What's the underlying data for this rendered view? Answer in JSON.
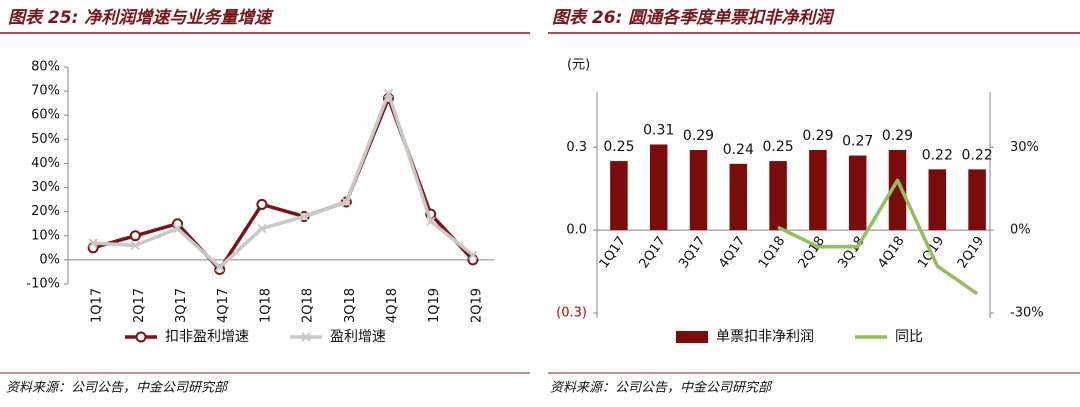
{
  "chart_data": [
    {
      "type": "line",
      "title": "图表 25: 净利润增速与业务量增速",
      "source": "资料来源：公司公告，中金公司研究部",
      "categories": [
        "1Q17",
        "2Q17",
        "3Q17",
        "4Q17",
        "1Q18",
        "2Q18",
        "3Q18",
        "4Q18",
        "1Q19",
        "2Q19"
      ],
      "series": [
        {
          "name": "扣非盈利增速",
          "color": "#7b1416",
          "marker": "circle",
          "values": [
            5,
            10,
            15,
            -4,
            23,
            18,
            24,
            67,
            19,
            0
          ]
        },
        {
          "name": "盈利增速",
          "color": "#c8c8c4",
          "marker": "x",
          "values": [
            7,
            6,
            13,
            -3,
            13,
            18,
            24,
            69,
            16,
            2
          ]
        }
      ],
      "ylim": [
        -10,
        80
      ],
      "yticks": [
        {
          "value": -10,
          "label": "-10%"
        },
        {
          "value": 0,
          "label": "0%"
        },
        {
          "value": 10,
          "label": "10%"
        },
        {
          "value": 20,
          "label": "20%"
        },
        {
          "value": 30,
          "label": "30%"
        },
        {
          "value": 40,
          "label": "40%"
        },
        {
          "value": 50,
          "label": "50%"
        },
        {
          "value": 60,
          "label": "60%"
        },
        {
          "value": 70,
          "label": "70%"
        },
        {
          "value": 80,
          "label": "80%"
        }
      ],
      "grid": false
    },
    {
      "type": "bar",
      "title": "图表 26: 圆通各季度单票扣非净利润",
      "source": "资料来源：公司公告，中金公司研究部",
      "ylabel": "(元)",
      "categories": [
        "1Q17",
        "2Q17",
        "3Q17",
        "4Q17",
        "1Q18",
        "2Q18",
        "3Q18",
        "4Q18",
        "1Q19",
        "2Q19"
      ],
      "series": [
        {
          "name": "单票扣非净利润",
          "color": "#7b0c0c",
          "type": "bar",
          "values": [
            0.25,
            0.31,
            0.29,
            0.24,
            0.25,
            0.29,
            0.27,
            0.29,
            0.22,
            0.22
          ]
        },
        {
          "name": "同比",
          "color": "#92c05a",
          "type": "line",
          "axis": "y2",
          "values": [
            null,
            null,
            null,
            null,
            1,
            -6,
            -6,
            18,
            -13,
            -23
          ]
        }
      ],
      "ylim": [
        -0.3,
        0.5
      ],
      "yticks": [
        {
          "value": -0.3,
          "label": "(0.3)"
        },
        {
          "value": 0,
          "label": "0.0"
        },
        0.3
      ],
      "y2lim": [
        -30,
        50
      ],
      "y2ticks": [
        {
          "value": -30,
          "label": "-30%"
        },
        {
          "value": 0,
          "label": "0%"
        },
        {
          "value": 30,
          "label": "30%"
        }
      ],
      "grid": false
    }
  ]
}
